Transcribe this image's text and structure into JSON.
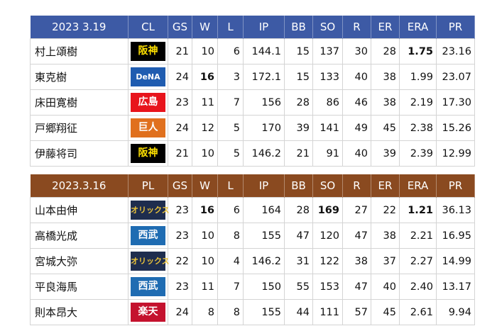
{
  "tables": [
    {
      "header": [
        "2023 3.19",
        "CL",
        "GS",
        "W",
        "L",
        "IP",
        "BB",
        "SO",
        "R",
        "ER",
        "ERA",
        "PR"
      ],
      "header_color": "#3d5aa5",
      "rows": [
        [
          "村上頌樹",
          "阪神",
          "21",
          "10",
          "6",
          "144.1",
          "15",
          "137",
          "30",
          "28",
          "1.75",
          "23.16"
        ],
        [
          "東克樹",
          "DeNA",
          "24",
          "16",
          "3",
          "172.1",
          "15",
          "133",
          "40",
          "38",
          "1.99",
          "23.07"
        ],
        [
          "床田寛樹",
          "広島",
          "23",
          "11",
          "7",
          "156",
          "28",
          "86",
          "46",
          "38",
          "2.19",
          "17.30"
        ],
        [
          "戸郷翔征",
          "巨人",
          "24",
          "12",
          "5",
          "170",
          "39",
          "141",
          "49",
          "45",
          "2.38",
          "15.26"
        ],
        [
          "伊藤将司",
          "阪神",
          "21",
          "10",
          "5",
          "146.2",
          "21",
          "91",
          "40",
          "39",
          "2.39",
          "12.99"
        ]
      ],
      "badge_colors": [
        [
          "#000000",
          "#ffe100"
        ],
        [
          "#1f5cb0",
          "#ffffff"
        ],
        [
          "#e8141c",
          "#ffffff"
        ],
        [
          "#e0701e",
          "#ffffff"
        ],
        [
          "#000000",
          "#ffe100"
        ]
      ],
      "bold": [
        [
          0,
          10
        ],
        [
          1,
          3
        ]
      ]
    },
    {
      "header": [
        "2023.3.16",
        "PL",
        "GS",
        "W",
        "L",
        "IP",
        "BB",
        "SO",
        "R",
        "ER",
        "ERA",
        "PR"
      ],
      "header_color": "#8a4a20",
      "rows": [
        [
          "山本由伸",
          "オリックス",
          "23",
          "16",
          "6",
          "164",
          "28",
          "169",
          "27",
          "22",
          "1.21",
          "36.13"
        ],
        [
          "高橋光成",
          "西武",
          "23",
          "10",
          "8",
          "155",
          "47",
          "120",
          "47",
          "38",
          "2.21",
          "16.95"
        ],
        [
          "宮城大弥",
          "オリックス",
          "22",
          "10",
          "4",
          "146.2",
          "31",
          "122",
          "38",
          "37",
          "2.27",
          "14.99"
        ],
        [
          "平良海馬",
          "西武",
          "23",
          "11",
          "7",
          "150",
          "55",
          "153",
          "47",
          "40",
          "2.40",
          "13.17"
        ],
        [
          "則本昂大",
          "楽天",
          "24",
          "8",
          "8",
          "155",
          "44",
          "111",
          "57",
          "45",
          "2.61",
          "9.94"
        ]
      ],
      "badge_colors": [
        [
          "#1e2d4e",
          "#e9c23a"
        ],
        [
          "#1f6cb2",
          "#ffffff"
        ],
        [
          "#1e2d4e",
          "#e9c23a"
        ],
        [
          "#1f6cb2",
          "#ffffff"
        ],
        [
          "#c4122e",
          "#ffffff"
        ]
      ],
      "bold": [
        [
          0,
          3
        ],
        [
          0,
          7
        ],
        [
          0,
          10
        ]
      ]
    }
  ]
}
